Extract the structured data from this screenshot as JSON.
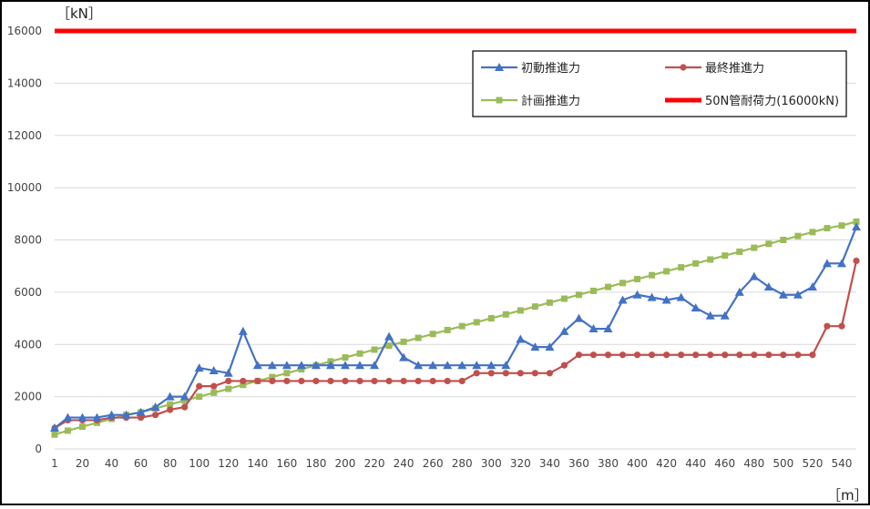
{
  "chart_data": {
    "type": "line",
    "title": "",
    "y_unit_label": "［kN］",
    "x_unit_label": "［m］",
    "ylim": [
      0,
      16000
    ],
    "y_ticks": [
      "0",
      "2000",
      "4000",
      "6000",
      "8000",
      "10000",
      "12000",
      "14000",
      "16000"
    ],
    "x_tick_labels": [
      "1",
      "20",
      "40",
      "60",
      "80",
      "100",
      "120",
      "140",
      "160",
      "180",
      "200",
      "220",
      "240",
      "260",
      "280",
      "300",
      "320",
      "340",
      "360",
      "380",
      "400",
      "420",
      "440",
      "460",
      "480",
      "500",
      "520",
      "540"
    ],
    "grid": true,
    "legend_position": "top-right (boxed, 2×2)",
    "x": [
      1,
      10,
      20,
      30,
      40,
      50,
      60,
      70,
      80,
      90,
      100,
      110,
      120,
      130,
      140,
      150,
      160,
      170,
      180,
      190,
      200,
      210,
      220,
      230,
      240,
      250,
      260,
      270,
      280,
      290,
      300,
      310,
      320,
      330,
      340,
      350,
      360,
      370,
      380,
      390,
      400,
      410,
      420,
      430,
      440,
      450,
      460,
      470,
      480,
      490,
      500,
      510,
      520,
      530,
      540,
      550
    ],
    "series": [
      {
        "name": "初動推進力",
        "color": "#4472c4",
        "marker": "triangle",
        "values": [
          800,
          1200,
          1200,
          1200,
          1300,
          1300,
          1400,
          1600,
          2000,
          2000,
          3100,
          3000,
          2900,
          4500,
          3200,
          3200,
          3200,
          3200,
          3200,
          3200,
          3200,
          3200,
          3200,
          4300,
          3500,
          3200,
          3200,
          3200,
          3200,
          3200,
          3200,
          3200,
          4200,
          3900,
          3900,
          4500,
          5000,
          4600,
          4600,
          5700,
          5900,
          5800,
          5700,
          5800,
          5400,
          5100,
          5100,
          6000,
          6600,
          6200,
          5900,
          5900,
          6200,
          7100,
          7100,
          8500
        ]
      },
      {
        "name": "最終推進力",
        "color": "#c0504d",
        "marker": "circle",
        "values": [
          800,
          1100,
          1100,
          1100,
          1200,
          1200,
          1200,
          1300,
          1500,
          1600,
          2400,
          2400,
          2600,
          2600,
          2600,
          2600,
          2600,
          2600,
          2600,
          2600,
          2600,
          2600,
          2600,
          2600,
          2600,
          2600,
          2600,
          2600,
          2600,
          2900,
          2900,
          2900,
          2900,
          2900,
          2900,
          3200,
          3600,
          3600,
          3600,
          3600,
          3600,
          3600,
          3600,
          3600,
          3600,
          3600,
          3600,
          3600,
          3600,
          3600,
          3600,
          3600,
          3600,
          4700,
          4700,
          7200
        ]
      },
      {
        "name": "計画推進力",
        "color": "#9bbb59",
        "marker": "square",
        "values": [
          550,
          700,
          850,
          1000,
          1150,
          1300,
          1400,
          1550,
          1700,
          1850,
          2000,
          2150,
          2300,
          2450,
          2600,
          2750,
          2900,
          3050,
          3200,
          3350,
          3500,
          3650,
          3800,
          3950,
          4100,
          4250,
          4400,
          4550,
          4700,
          4850,
          5000,
          5150,
          5300,
          5450,
          5600,
          5750,
          5900,
          6050,
          6200,
          6350,
          6500,
          6650,
          6800,
          6950,
          7100,
          7250,
          7400,
          7550,
          7700,
          7850,
          8000,
          8150,
          8300,
          8450,
          8550,
          8700
        ]
      },
      {
        "name": "50N管耐荷力(16000kN)",
        "color": "#ff0000",
        "marker": "none",
        "constant": 16000
      }
    ]
  }
}
